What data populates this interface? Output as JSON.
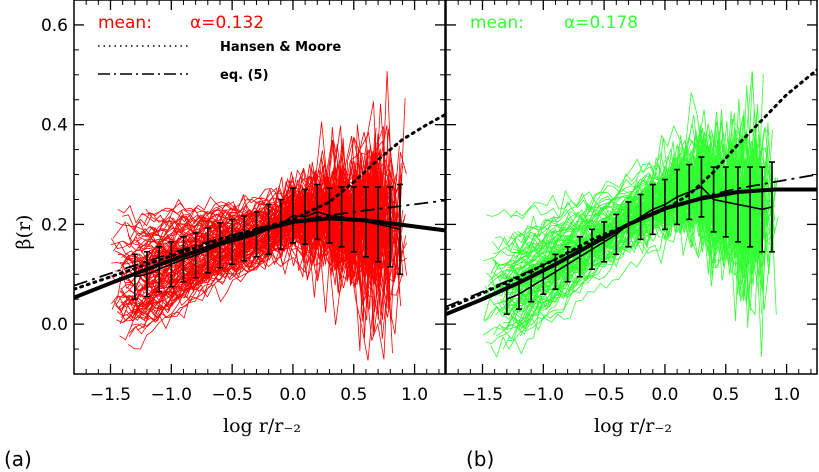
{
  "figure": {
    "panel_labels": [
      "(a)",
      "(b)"
    ],
    "ylabel": "β(r)",
    "xlabel": "log r/r₋₂"
  },
  "chart_data": [
    {
      "type": "line",
      "panel": "(a)",
      "xlim": [
        -1.8,
        1.25
      ],
      "ylim": [
        -0.1,
        0.65
      ],
      "xticks": [
        -1.5,
        -1.0,
        -0.5,
        0.0,
        0.5,
        1.0
      ],
      "xtick_labels": [
        "-1.5",
        "-1.0",
        "-0.5",
        "0.0",
        "0.5",
        "1.0"
      ],
      "yticks": [
        0.0,
        0.2,
        0.4,
        0.6
      ],
      "ytick_labels": [
        "0.0",
        "0.2",
        "0.4",
        "0.6"
      ],
      "mean_label": "mean:",
      "alpha_label": "α=0.132",
      "alpha": 0.132,
      "color": "#ff0000",
      "legend": [
        "Hansen & Moore",
        "eq. (5)"
      ],
      "legend_placement": "top-center",
      "fit_curve": {
        "x": [
          -1.8,
          -1.5,
          -1.2,
          -0.9,
          -0.6,
          -0.3,
          0.0,
          0.3,
          0.6,
          0.9,
          1.25
        ],
        "y": [
          0.053,
          0.082,
          0.11,
          0.137,
          0.162,
          0.186,
          0.205,
          0.212,
          0.208,
          0.199,
          0.188
        ]
      },
      "hansen_moore": {
        "x": [
          -1.8,
          -1.5,
          -1.2,
          -0.9,
          -0.6,
          -0.3,
          0.0,
          0.3,
          0.5,
          0.7,
          0.9,
          1.1,
          1.25
        ],
        "y": [
          0.07,
          0.095,
          0.12,
          0.145,
          0.17,
          0.19,
          0.21,
          0.245,
          0.285,
          0.33,
          0.37,
          0.4,
          0.42
        ]
      },
      "eq5": {
        "x": [
          -1.8,
          -1.5,
          -1.2,
          -0.9,
          -0.6,
          -0.3,
          0.0,
          0.3,
          0.6,
          0.9,
          1.25
        ],
        "y": [
          0.077,
          0.102,
          0.126,
          0.15,
          0.172,
          0.192,
          0.207,
          0.218,
          0.228,
          0.237,
          0.248
        ]
      },
      "binned_mean": {
        "x": [
          -1.3,
          -1.2,
          -1.1,
          -1.0,
          -0.9,
          -0.8,
          -0.7,
          -0.6,
          -0.5,
          -0.4,
          -0.3,
          -0.2,
          -0.1,
          0.0,
          0.1,
          0.2,
          0.3,
          0.4,
          0.5,
          0.6,
          0.7,
          0.8,
          0.88
        ],
        "y": [
          0.095,
          0.1,
          0.11,
          0.12,
          0.13,
          0.138,
          0.148,
          0.158,
          0.165,
          0.172,
          0.18,
          0.19,
          0.2,
          0.218,
          0.215,
          0.225,
          0.218,
          0.215,
          0.21,
          0.205,
          0.2,
          0.195,
          0.19
        ],
        "err": [
          0.045,
          0.045,
          0.045,
          0.045,
          0.045,
          0.045,
          0.045,
          0.045,
          0.045,
          0.045,
          0.045,
          0.05,
          0.05,
          0.055,
          0.055,
          0.055,
          0.055,
          0.06,
          0.065,
          0.07,
          0.075,
          0.08,
          0.09
        ]
      },
      "n_individual_halos": 110
    },
    {
      "type": "line",
      "panel": "(b)",
      "xlim": [
        -1.8,
        1.25
      ],
      "ylim": [
        -0.1,
        0.65
      ],
      "xticks": [
        -1.5,
        -1.0,
        -0.5,
        0.0,
        0.5,
        1.0
      ],
      "xtick_labels": [
        "-1.5",
        "-1.0",
        "-0.5",
        "0.0",
        "0.5",
        "1.0"
      ],
      "yticks": [
        0.0,
        0.2,
        0.4,
        0.6
      ],
      "ytick_labels": [
        "0.0",
        "0.2",
        "0.4",
        "0.6"
      ],
      "mean_label": "mean:",
      "alpha_label": "α=0.178",
      "alpha": 0.178,
      "color": "#33ff33",
      "fit_curve": {
        "x": [
          -1.8,
          -1.5,
          -1.2,
          -0.9,
          -0.6,
          -0.3,
          0.0,
          0.3,
          0.6,
          0.9,
          1.25
        ],
        "y": [
          0.02,
          0.05,
          0.083,
          0.12,
          0.16,
          0.2,
          0.232,
          0.252,
          0.265,
          0.27,
          0.27
        ]
      },
      "hansen_moore": {
        "x": [
          -1.8,
          -1.5,
          -1.2,
          -0.9,
          -0.6,
          -0.3,
          0.0,
          0.2,
          0.4,
          0.6,
          0.8,
          1.0,
          1.25
        ],
        "y": [
          0.03,
          0.062,
          0.095,
          0.13,
          0.17,
          0.2,
          0.23,
          0.26,
          0.305,
          0.36,
          0.41,
          0.46,
          0.51
        ]
      },
      "eq5": {
        "x": [
          -1.8,
          -1.5,
          -1.2,
          -0.9,
          -0.6,
          -0.3,
          0.0,
          0.3,
          0.6,
          0.9,
          1.25
        ],
        "y": [
          0.035,
          0.065,
          0.097,
          0.13,
          0.165,
          0.2,
          0.23,
          0.255,
          0.272,
          0.285,
          0.3
        ]
      },
      "binned_mean": {
        "x": [
          -1.3,
          -1.2,
          -1.1,
          -1.0,
          -0.9,
          -0.8,
          -0.7,
          -0.6,
          -0.5,
          -0.4,
          -0.3,
          -0.2,
          -0.1,
          0.0,
          0.1,
          0.2,
          0.3,
          0.4,
          0.5,
          0.6,
          0.7,
          0.8,
          0.88
        ],
        "y": [
          0.05,
          0.06,
          0.075,
          0.09,
          0.105,
          0.12,
          0.135,
          0.15,
          0.165,
          0.18,
          0.2,
          0.215,
          0.23,
          0.24,
          0.255,
          0.265,
          0.275,
          0.25,
          0.245,
          0.24,
          0.235,
          0.23,
          0.235
        ],
        "err": [
          0.03,
          0.03,
          0.03,
          0.03,
          0.035,
          0.035,
          0.04,
          0.04,
          0.04,
          0.04,
          0.045,
          0.045,
          0.05,
          0.05,
          0.055,
          0.055,
          0.06,
          0.065,
          0.07,
          0.075,
          0.08,
          0.085,
          0.09
        ]
      },
      "n_individual_halos": 110
    }
  ]
}
